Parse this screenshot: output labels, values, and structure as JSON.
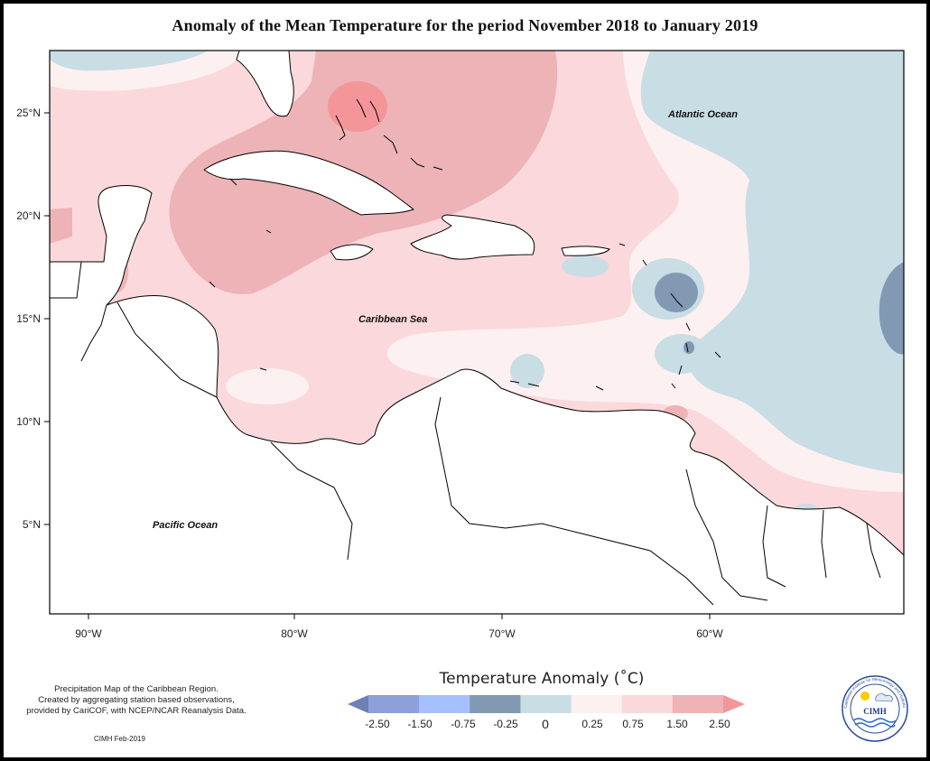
{
  "title": "Anomaly of the Mean Temperature for the period November 2018 to January 2019",
  "map": {
    "latitude_ticks": [
      "25°N",
      "20°N",
      "15°N",
      "10°N",
      "5°N"
    ],
    "longitude_ticks": [
      "90°W",
      "80°W",
      "70°W",
      "60°W"
    ],
    "ocean_labels": {
      "atlantic": "Atlantic Ocean",
      "caribbean": "Caribbean Sea",
      "pacific": "Pacific Ocean"
    }
  },
  "legend": {
    "title": "Temperature Anomaly (˚C)",
    "bins": [
      {
        "color": "#6e80b5"
      },
      {
        "color": "#8da0d8"
      },
      {
        "color": "#a6bfff"
      },
      {
        "color": "#8299b3"
      },
      {
        "color": "#c9dde5"
      },
      {
        "color": "#fdf0f0"
      },
      {
        "color": "#fad8dc"
      },
      {
        "color": "#eeb3b6"
      },
      {
        "color": "#f49599"
      }
    ],
    "labels": [
      "-2.50",
      "-1.50",
      "-0.75",
      "-0.25",
      "0",
      "0.25",
      "0.75",
      "1.50",
      "2.50"
    ]
  },
  "footnote": {
    "line1": "Precipitation Map of the Caribbean Region.",
    "line2": "Created by aggregating station based observations,",
    "line3": "provided by CariCOF, with NCEP/NCAR Reanalysis Data."
  },
  "credit": "CIMH Feb-2019",
  "logo": {
    "ring_text": "Caribbean Institute for Meteorology and Hydrology",
    "short_name": "CIMH"
  },
  "colors": {
    "neutral": "#fdf0f0",
    "light_warm": "#fad8dc",
    "warm": "#eeb3b6",
    "hot": "#f49599",
    "light_cool": "#c9dde5",
    "cool": "#8299b3"
  }
}
